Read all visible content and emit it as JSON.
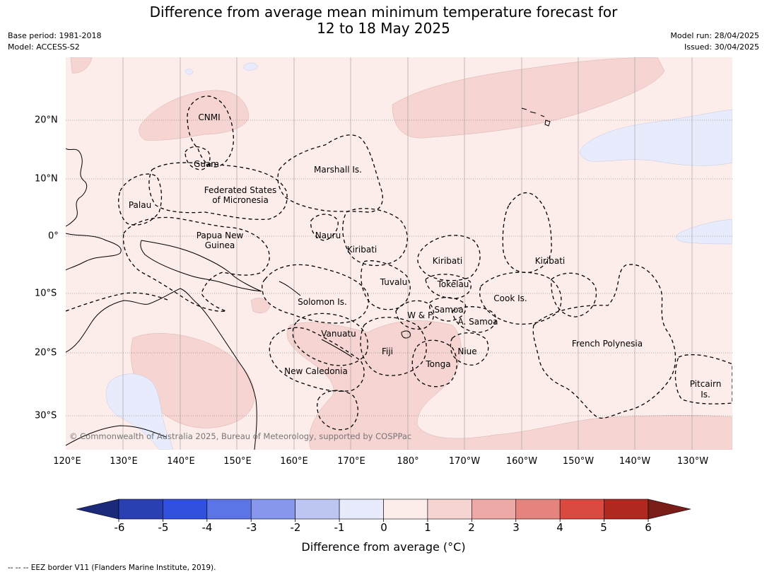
{
  "title": {
    "line1": "Difference from average mean minimum temperature forecast for",
    "line2": "12 to 18 May 2025"
  },
  "meta_left": {
    "base_period": "Base period: 1981-2018",
    "model": "Model: ACCESS-S2"
  },
  "meta_right": {
    "model_run": "Model run: 28/04/2025",
    "issued": "Issued: 30/04/2025"
  },
  "lon_labels": [
    "120°E",
    "130°E",
    "140°E",
    "150°E",
    "160°E",
    "170°E",
    "180°",
    "170°W",
    "160°W",
    "150°W",
    "140°W",
    "130°W"
  ],
  "lat_labels": [
    "20°N",
    "10°N",
    "0°",
    "10°S",
    "20°S",
    "30°S"
  ],
  "places": {
    "cnmi": "CNMI",
    "guam": "Guam",
    "marshall": "Marshall Is.",
    "fsm1": "Federated States",
    "fsm2": "of Micronesia",
    "palau": "Palau",
    "png1": "Papua New",
    "png2": "Guinea",
    "nauru": "Nauru",
    "kiribati_w": "Kiribati",
    "kiribati_c": "Kiribati",
    "kiribati_e": "Kiribati",
    "tuvalu": "Tuvalu",
    "tokelau": "Tokelau",
    "cook": "Cook Is.",
    "solomon": "Solomon Is.",
    "wf": "W & F",
    "samoa": "Samoa",
    "asamoa": "A. Samoa",
    "vanuatu": "Vanuatu",
    "fiji": "Fiji",
    "niue": "Niue",
    "tonga": "Tonga",
    "newcal": "New Caledonia",
    "frpoly": "French Polynesia",
    "pitcairn1": "Pitcairn",
    "pitcairn2": "Is."
  },
  "copyright": "© Commonwealth of Australia 2025, Bureau of Meteorology, supported by COSPPac",
  "colorbar": {
    "ticks": [
      "-6",
      "-5",
      "-4",
      "-3",
      "-2",
      "-1",
      "0",
      "1",
      "2",
      "3",
      "4",
      "5",
      "6"
    ],
    "colors": [
      "#2a3fb2",
      "#3050e0",
      "#5b74e6",
      "#8596ec",
      "#bdc5f3",
      "#e8ebfb",
      "#fcecea",
      "#f5d4d2",
      "#eda9a6",
      "#e5837f",
      "#db4a41",
      "#b1281f"
    ],
    "under_color": "#1c2a7c",
    "over_color": "#7a1c18",
    "label": "Difference from average (°C)"
  },
  "legend": {
    "eez": "-- -- -- EEZ border V11 (Flanders Marine Institute, 2019)."
  },
  "colors": {
    "bg": "#fcecea",
    "warm": "#f5d4d2",
    "cool": "#e8ebfb"
  }
}
